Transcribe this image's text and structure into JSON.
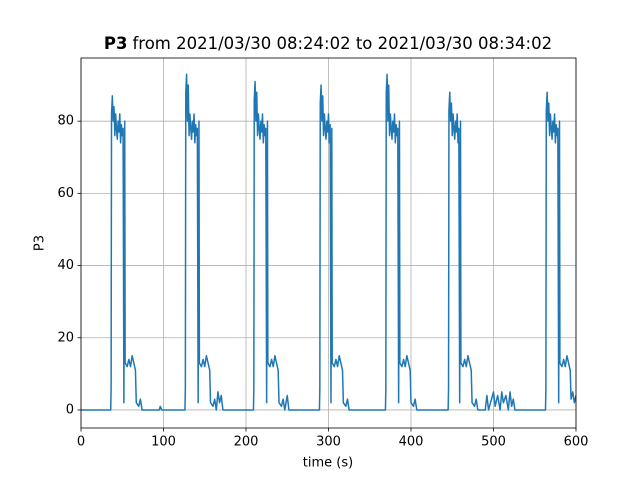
{
  "chart_data": {
    "type": "line",
    "title": {
      "bold": "P3",
      "text": "from 2021/03/30 08:24:02 to 2021/03/30 08:34:02"
    },
    "xlabel": "time (s)",
    "ylabel": "P3",
    "color": "#1f77b4",
    "grid": true,
    "xlim": [
      0,
      600
    ],
    "ylim": [
      -5,
      97.5
    ],
    "xticks": [
      0,
      100,
      200,
      300,
      400,
      500,
      600
    ],
    "yticks": [
      0,
      20,
      40,
      60,
      80
    ],
    "x": [
      0,
      35,
      36,
      36.5,
      37,
      38,
      39,
      40,
      41,
      42,
      43,
      44,
      45,
      46,
      47,
      48,
      49,
      50,
      51,
      52,
      53,
      53.5,
      56,
      58,
      60,
      62,
      64,
      66,
      67,
      70,
      72,
      74,
      95,
      96,
      98,
      125,
      126,
      126.5,
      127,
      128,
      129,
      130,
      131,
      132,
      133,
      134,
      135,
      136,
      137,
      138,
      139,
      140,
      141,
      142,
      143,
      143.5,
      146,
      148,
      150,
      152,
      154,
      156,
      157,
      160,
      162,
      164,
      166,
      168,
      170,
      172,
      209,
      209.5,
      210,
      211,
      212,
      213,
      214,
      215,
      216,
      217,
      218,
      219,
      220,
      221,
      222,
      223,
      224,
      225,
      226,
      226.5,
      229,
      231,
      233,
      235,
      237,
      239,
      240,
      243,
      245,
      247,
      250,
      252,
      289,
      289.5,
      290,
      291,
      292,
      293,
      294,
      295,
      296,
      297,
      298,
      299,
      300,
      301,
      302,
      303,
      304,
      304.5,
      307,
      309,
      311,
      313,
      315,
      317,
      318,
      321,
      323,
      325,
      369,
      369.5,
      370,
      371,
      372,
      373,
      374,
      375,
      376,
      377,
      378,
      379,
      380,
      381,
      382,
      383,
      384,
      385,
      386,
      386.5,
      389,
      391,
      393,
      395,
      397,
      399,
      400,
      403,
      405,
      407,
      445,
      445.5,
      446,
      447,
      448,
      449,
      450,
      451,
      452,
      453,
      454,
      455,
      456,
      457,
      458,
      459,
      460,
      460.5,
      463,
      465,
      467,
      469,
      471,
      473,
      474,
      477,
      479,
      481,
      490,
      492,
      494,
      500,
      502,
      505,
      508,
      510,
      512,
      515,
      518,
      520,
      522,
      524,
      526,
      563,
      563.5,
      564,
      565,
      566,
      567,
      568,
      569,
      570,
      571,
      572,
      573,
      574,
      575,
      576,
      577,
      578,
      579,
      580,
      580.5,
      583,
      585,
      587,
      589,
      591,
      593,
      594,
      596,
      598,
      600
    ],
    "values": [
      0,
      0,
      0,
      6,
      82,
      87,
      80,
      84,
      76,
      82,
      78,
      75,
      80,
      77,
      82,
      74,
      79,
      76,
      78,
      2,
      80,
      13,
      12,
      14,
      12,
      15,
      13,
      11,
      2,
      1,
      3,
      0,
      0,
      1,
      0,
      0,
      0,
      6,
      88,
      93,
      80,
      90,
      76,
      82,
      78,
      75,
      80,
      77,
      82,
      74,
      79,
      76,
      78,
      2,
      80,
      13,
      12,
      14,
      12,
      15,
      13,
      11,
      2,
      1,
      3,
      0,
      5,
      2,
      4,
      0,
      0,
      6,
      86,
      91,
      80,
      88,
      76,
      82,
      78,
      75,
      80,
      77,
      82,
      74,
      79,
      76,
      78,
      2,
      80,
      13,
      12,
      14,
      12,
      15,
      13,
      11,
      2,
      1,
      3,
      0,
      4,
      0,
      0,
      6,
      85,
      90,
      80,
      87,
      76,
      82,
      78,
      75,
      80,
      77,
      82,
      74,
      79,
      2,
      78,
      13,
      12,
      14,
      12,
      15,
      13,
      11,
      2,
      1,
      3,
      0,
      0,
      6,
      88,
      93,
      80,
      90,
      76,
      82,
      78,
      75,
      80,
      77,
      82,
      74,
      79,
      76,
      78,
      2,
      80,
      13,
      12,
      14,
      12,
      15,
      13,
      11,
      2,
      1,
      3,
      0,
      0,
      6,
      83,
      88,
      80,
      85,
      76,
      82,
      78,
      75,
      80,
      77,
      82,
      74,
      78,
      2,
      80,
      13,
      12,
      14,
      12,
      15,
      13,
      11,
      2,
      1,
      3,
      0,
      0,
      4,
      0,
      5,
      1,
      4,
      0,
      5,
      2,
      4,
      0,
      5,
      1,
      3,
      0,
      0,
      6,
      83,
      88,
      80,
      85,
      76,
      82,
      78,
      75,
      80,
      77,
      82,
      74,
      79,
      76,
      78,
      2,
      80,
      13,
      12,
      14,
      12,
      15,
      13,
      11,
      3,
      5,
      2,
      4
    ]
  }
}
